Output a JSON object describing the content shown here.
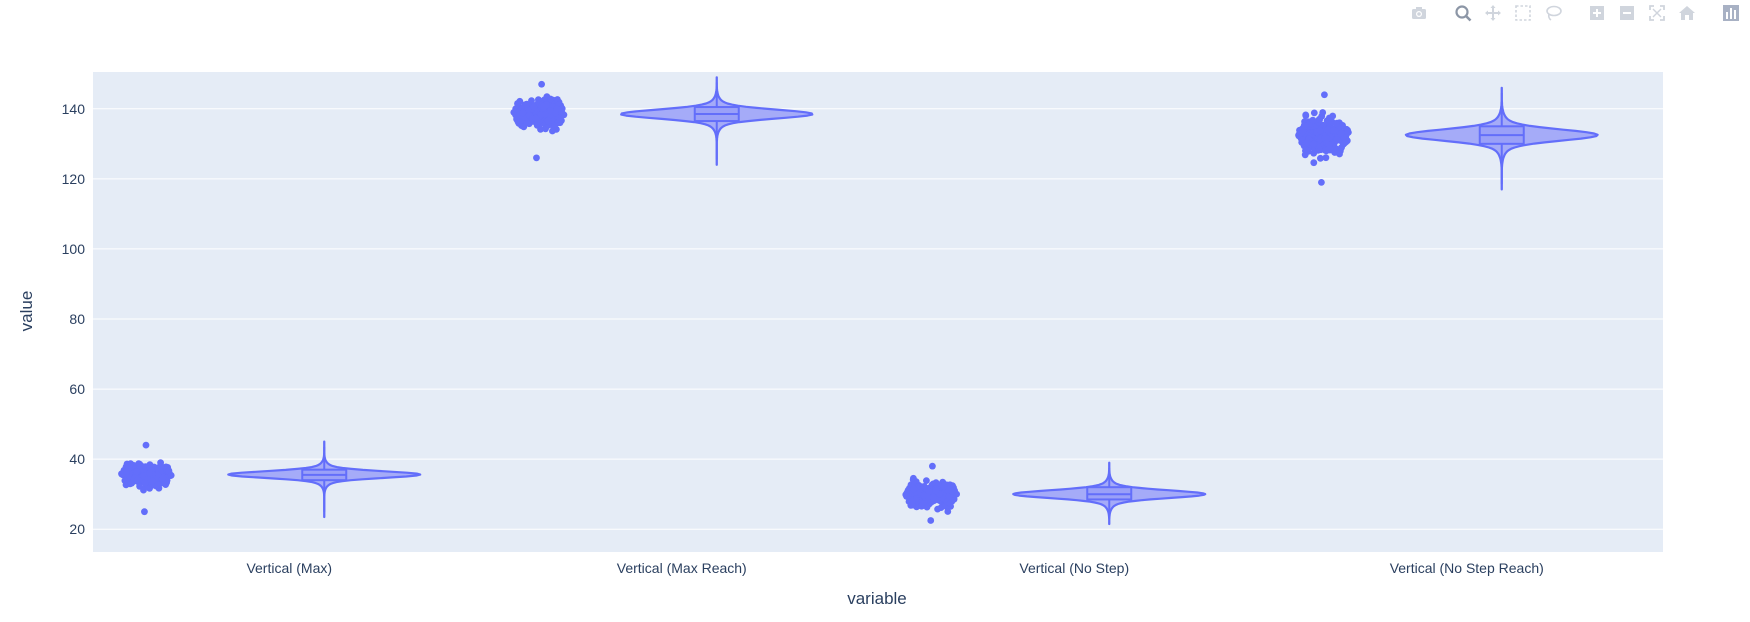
{
  "modebar": {
    "buttons": [
      {
        "name": "camera-icon"
      },
      {
        "name": "zoom-icon"
      },
      {
        "name": "pan-icon"
      },
      {
        "name": "box-select-icon"
      },
      {
        "name": "lasso-select-icon"
      },
      {
        "name": "zoom-in-icon"
      },
      {
        "name": "zoom-out-icon"
      },
      {
        "name": "autoscale-icon"
      },
      {
        "name": "reset-axes-icon"
      },
      {
        "name": "plotly-logo-icon"
      }
    ],
    "active": "zoom-icon"
  },
  "colors": {
    "plot_bg": "#e5ecf6",
    "grid": "#ffffff",
    "trace": "#636efa",
    "violin_fill": "#a5abf8",
    "text": "#2a3f5f"
  },
  "chart_data": {
    "type": "violin",
    "xlabel": "variable",
    "ylabel": "value",
    "ylim": [
      13.5,
      150.5
    ],
    "yticks": [
      20,
      40,
      60,
      80,
      100,
      120,
      140
    ],
    "categories": [
      "Vertical (Max)",
      "Vertical (Max Reach)",
      "Vertical (No Step)",
      "Vertical (No Step Reach)"
    ],
    "points": "all",
    "box": true,
    "grid": true,
    "series": [
      {
        "category": "Vertical (Max)",
        "min": 23.5,
        "q1": 34.0,
        "median": 35.5,
        "q3": 37.0,
        "max": 45.0,
        "peak": 35.6,
        "ptmin": 25.0,
        "ptmax": 44.0
      },
      {
        "category": "Vertical (Max Reach)",
        "min": 124.0,
        "q1": 136.5,
        "median": 138.5,
        "q3": 140.5,
        "max": 149.0,
        "peak": 138.5,
        "ptmin": 126.0,
        "ptmax": 147.0
      },
      {
        "category": "Vertical (No Step)",
        "min": 21.5,
        "q1": 28.5,
        "median": 30.0,
        "q3": 32.0,
        "max": 39.0,
        "peak": 30.0,
        "ptmin": 22.5,
        "ptmax": 38.0
      },
      {
        "category": "Vertical (No Step Reach)",
        "min": 117.0,
        "q1": 130.0,
        "median": 132.5,
        "q3": 135.0,
        "max": 146.0,
        "peak": 132.5,
        "ptmin": 119.0,
        "ptmax": 144.0
      }
    ]
  }
}
